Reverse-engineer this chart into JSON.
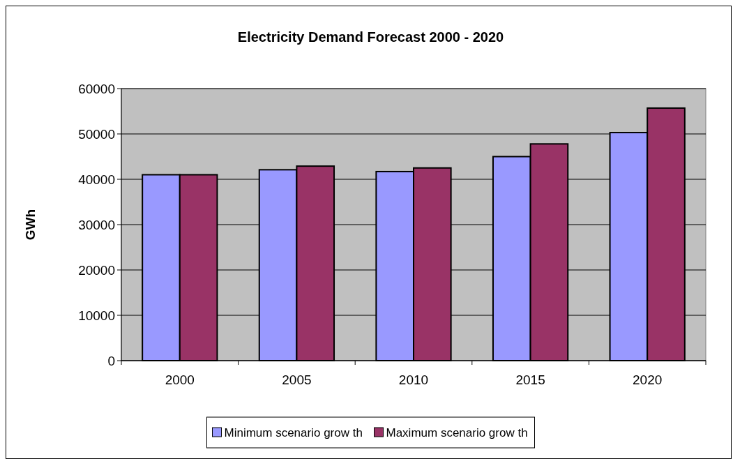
{
  "chart_data": {
    "type": "bar",
    "title": "Electricity Demand Forecast 2000 - 2020",
    "ylabel": "GWh",
    "categories": [
      "2000",
      "2005",
      "2010",
      "2015",
      "2020"
    ],
    "series": [
      {
        "name": "Minimum scenario grow th",
        "color": "#9999ff",
        "values": [
          41000,
          42100,
          41700,
          45000,
          50300
        ]
      },
      {
        "name": "Maximum scenario grow th",
        "color": "#993366",
        "values": [
          41000,
          42900,
          42500,
          47800,
          55700
        ]
      }
    ],
    "ylim": [
      0,
      60000
    ],
    "yticks": [
      0,
      10000,
      20000,
      30000,
      40000,
      50000,
      60000
    ],
    "grid": "y",
    "legend": "bottom"
  }
}
